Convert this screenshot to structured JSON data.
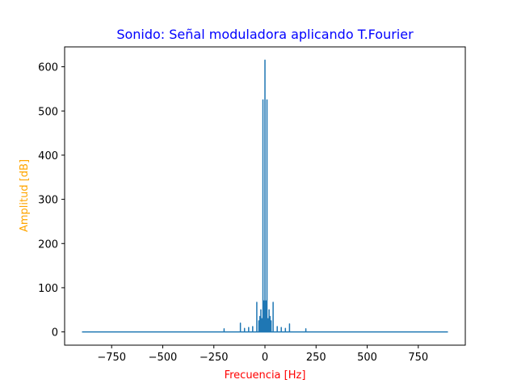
{
  "chart_data": {
    "type": "line",
    "title": "Sonido: Señal moduladora aplicando T.Fourier",
    "title_color": "#0000ff",
    "xlabel": "Frecuencia [Hz]",
    "xlabel_color": "#ff0000",
    "ylabel": "Amplitud [dB]",
    "ylabel_color": "#ffa500",
    "line_color": "#1f77b4",
    "xlim": [
      -980,
      980
    ],
    "ylim": [
      -30,
      645
    ],
    "xticks": [
      -750,
      -500,
      -250,
      0,
      250,
      500,
      750
    ],
    "xtick_labels": [
      "−750",
      "−500",
      "−250",
      "0",
      "250",
      "500",
      "750"
    ],
    "yticks": [
      0,
      100,
      200,
      300,
      400,
      500,
      600
    ],
    "ytick_labels": [
      "0",
      "100",
      "200",
      "300",
      "400",
      "500",
      "600"
    ],
    "x_range": [
      -895,
      895
    ],
    "peaks": [
      {
        "x": 0,
        "y": 615
      },
      {
        "x": -10,
        "y": 525
      },
      {
        "x": 10,
        "y": 525
      },
      {
        "x": -40,
        "y": 67
      },
      {
        "x": 40,
        "y": 67
      },
      {
        "x": -5,
        "y": 70
      },
      {
        "x": 5,
        "y": 70
      },
      {
        "x": -20,
        "y": 50
      },
      {
        "x": 20,
        "y": 50
      },
      {
        "x": -25,
        "y": 35
      },
      {
        "x": 25,
        "y": 35
      },
      {
        "x": -120,
        "y": 20
      },
      {
        "x": 120,
        "y": 18
      },
      {
        "x": -80,
        "y": 10
      },
      {
        "x": 80,
        "y": 10
      },
      {
        "x": -60,
        "y": 12
      },
      {
        "x": 60,
        "y": 12
      },
      {
        "x": -100,
        "y": 8
      },
      {
        "x": 100,
        "y": 8
      },
      {
        "x": -200,
        "y": 7
      },
      {
        "x": 200,
        "y": 7
      },
      {
        "x": -30,
        "y": 25
      },
      {
        "x": 30,
        "y": 25
      },
      {
        "x": -15,
        "y": 30
      },
      {
        "x": 15,
        "y": 30
      }
    ]
  }
}
